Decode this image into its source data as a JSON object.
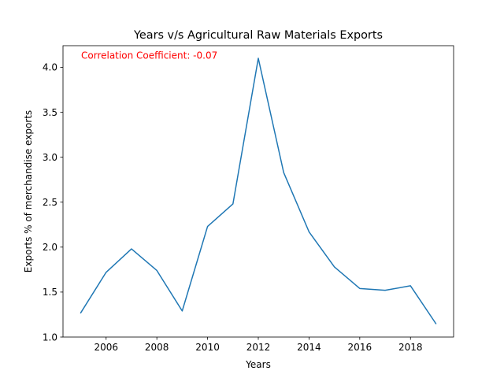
{
  "chart_data": {
    "type": "line",
    "title": "Years v/s Agricultural Raw Materials Exports",
    "xlabel": "Years",
    "ylabel": "Exports % of merchandise exports",
    "annotation": "Correlation Coefficient: -0.07",
    "annotation_color": "#ff0000",
    "line_color": "#1f77b4",
    "xlim": [
      2004.3,
      2019.7
    ],
    "ylim": [
      1.0,
      4.24
    ],
    "x_ticks": [
      2006,
      2008,
      2010,
      2012,
      2014,
      2016,
      2018
    ],
    "y_ticks": [
      1.0,
      1.5,
      2.0,
      2.5,
      3.0,
      3.5,
      4.0
    ],
    "x_tick_labels": [
      "2006",
      "2008",
      "2010",
      "2012",
      "2014",
      "2016",
      "2018"
    ],
    "y_tick_labels": [
      "1.0",
      "1.5",
      "2.0",
      "2.5",
      "3.0",
      "3.5",
      "4.0"
    ],
    "grid": false,
    "series": [
      {
        "x": [
          2005,
          2006,
          2007,
          2008,
          2009,
          2010,
          2011,
          2012,
          2013,
          2014,
          2015,
          2016,
          2017,
          2018,
          2019
        ],
        "values": [
          1.27,
          1.72,
          1.98,
          1.74,
          1.29,
          2.23,
          2.48,
          4.1,
          2.83,
          2.17,
          1.78,
          1.54,
          1.52,
          1.57,
          1.15
        ]
      }
    ]
  }
}
